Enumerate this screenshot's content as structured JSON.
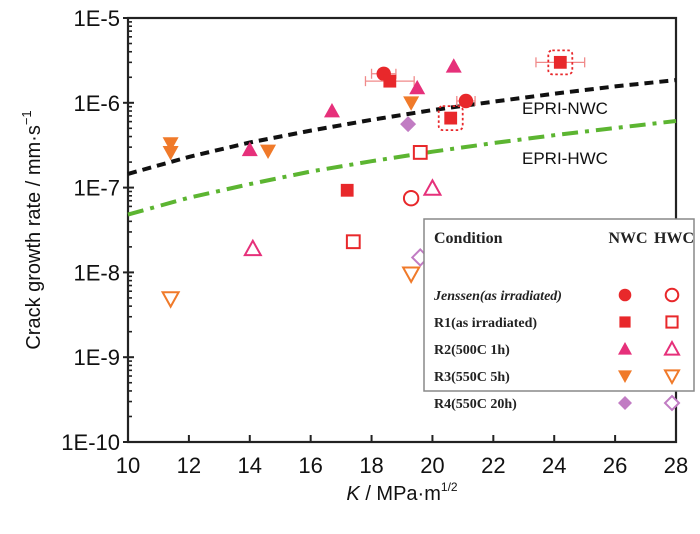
{
  "chart_data": {
    "type": "scatter",
    "title": "",
    "xlabel": "K / MPa·m^1/2",
    "xlabel_parts": {
      "var": "K",
      "unit": " / MPa·m",
      "sup": "1/2"
    },
    "ylabel": "Crack growth rate / mm·s^-1",
    "ylabel_parts": {
      "text": "Crack growth rate / mm·s",
      "sup": "−1"
    },
    "xlim": [
      10,
      28
    ],
    "ylim": [
      1e-10,
      1e-05
    ],
    "yscale": "log",
    "x_ticks": [
      10,
      12,
      14,
      16,
      18,
      20,
      22,
      24,
      26,
      28
    ],
    "x_tick_labels": [
      "10",
      "12",
      "14",
      "16",
      "18",
      "20",
      "22",
      "24",
      "26",
      "28"
    ],
    "y_ticks": [
      1e-10,
      1e-09,
      1e-08,
      1e-07,
      1e-06,
      1e-05
    ],
    "y_tick_labels": [
      "1E-10",
      "1E-9",
      "1E-8",
      "1E-7",
      "1E-6",
      "1E-5"
    ],
    "grid": false,
    "curves": [
      {
        "name": "EPRI-NWC",
        "label": "EPRI-NWC",
        "style": "dashed",
        "color": "#111111",
        "x": [
          10,
          12,
          14,
          16,
          18,
          20,
          22,
          24,
          26,
          28
        ],
        "y": [
          1.45e-07,
          2.3e-07,
          3.4e-07,
          4.7e-07,
          6.3e-07,
          8.2e-07,
          1.03e-06,
          1.28e-06,
          1.56e-06,
          1.85e-06
        ]
      },
      {
        "name": "EPRI-HWC",
        "label": "EPRI-HWC",
        "style": "dashdot",
        "color": "#5cb531",
        "x": [
          10,
          12,
          14,
          16,
          18,
          20,
          22,
          24,
          26,
          28
        ],
        "y": [
          4.8e-08,
          7.6e-08,
          1.1e-07,
          1.55e-07,
          2.05e-07,
          2.65e-07,
          3.35e-07,
          4.15e-07,
          5.05e-07,
          6.1e-07
        ]
      }
    ],
    "series": [
      {
        "name": "Jenssen(as irradiated)",
        "condition": "NWC",
        "marker": "circle",
        "filled": true,
        "color": "#e8282b",
        "points": [
          {
            "x": 18.4,
            "y": 2.2e-06,
            "xerr": 0.4
          },
          {
            "x": 21.1,
            "y": 1.05e-06,
            "xerr": 0.3
          }
        ]
      },
      {
        "name": "R1(as irradiated)",
        "condition": "NWC",
        "marker": "square",
        "filled": true,
        "color": "#e8282b",
        "points": [
          {
            "x": 18.6,
            "y": 1.8e-06,
            "xerr": 0.8
          },
          {
            "x": 24.2,
            "y": 3e-06,
            "xerr": 0.8,
            "boxed": true
          },
          {
            "x": 20.6,
            "y": 6.6e-07,
            "boxed": true
          },
          {
            "x": 17.2,
            "y": 9.3e-08
          }
        ]
      },
      {
        "name": "R2(500C 1h)",
        "condition": "NWC",
        "marker": "triangle-up",
        "filled": true,
        "color": "#e6307a",
        "points": [
          {
            "x": 20.7,
            "y": 2.7e-06
          },
          {
            "x": 19.5,
            "y": 1.5e-06
          },
          {
            "x": 16.7,
            "y": 8e-07
          },
          {
            "x": 14.0,
            "y": 2.8e-07
          }
        ]
      },
      {
        "name": "R3(550C 5h)",
        "condition": "NWC",
        "marker": "triangle-down",
        "filled": true,
        "color": "#f07a2a",
        "points": [
          {
            "x": 11.4,
            "y": 3.3e-07
          },
          {
            "x": 11.4,
            "y": 2.6e-07
          },
          {
            "x": 14.6,
            "y": 2.7e-07
          },
          {
            "x": 19.3,
            "y": 1e-06
          }
        ]
      },
      {
        "name": "R4(550C 20h)",
        "condition": "NWC",
        "marker": "diamond",
        "filled": true,
        "color": "#c17cc3",
        "points": [
          {
            "x": 19.2,
            "y": 5.6e-07
          }
        ]
      },
      {
        "name": "Jenssen(as irradiated)",
        "condition": "HWC",
        "marker": "circle",
        "filled": false,
        "color": "#e8282b",
        "points": [
          {
            "x": 19.3,
            "y": 7.5e-08
          }
        ]
      },
      {
        "name": "R1(as irradiated)",
        "condition": "HWC",
        "marker": "square",
        "filled": false,
        "color": "#e8282b",
        "points": [
          {
            "x": 19.6,
            "y": 2.6e-07
          },
          {
            "x": 17.4,
            "y": 2.3e-08
          }
        ]
      },
      {
        "name": "R2(500C 1h)",
        "condition": "HWC",
        "marker": "triangle-up",
        "filled": false,
        "color": "#e6307a",
        "points": [
          {
            "x": 20.0,
            "y": 9.8e-08
          },
          {
            "x": 14.1,
            "y": 1.9e-08
          }
        ]
      },
      {
        "name": "R3(550C 5h)",
        "condition": "HWC",
        "marker": "triangle-down",
        "filled": false,
        "color": "#f07a2a",
        "points": [
          {
            "x": 11.4,
            "y": 4.9e-09
          },
          {
            "x": 19.3,
            "y": 9.6e-09
          }
        ]
      },
      {
        "name": "R4(550C 20h)",
        "condition": "HWC",
        "marker": "diamond",
        "filled": false,
        "color": "#c17cc3",
        "points": [
          {
            "x": 19.6,
            "y": 1.5e-08
          }
        ]
      }
    ],
    "legend": {
      "placement": "lower-right",
      "header": {
        "condition": "Condition",
        "nwc": "NWC",
        "hwc": "HWC"
      },
      "rows": [
        {
          "label": "Jenssen(as irradiated)",
          "italic": true,
          "marker": "circle",
          "color": "#e8282b"
        },
        {
          "label": "R1(as irradiated)",
          "italic": false,
          "marker": "square",
          "color": "#e8282b"
        },
        {
          "label": "R2(500C 1h)",
          "italic": false,
          "marker": "triangle-up",
          "color": "#e6307a"
        },
        {
          "label": "R3(550C 5h)",
          "italic": false,
          "marker": "triangle-down",
          "color": "#f07a2a"
        },
        {
          "label": "R4(550C 20h)",
          "italic": false,
          "marker": "diamond",
          "color": "#c17cc3"
        }
      ]
    }
  }
}
